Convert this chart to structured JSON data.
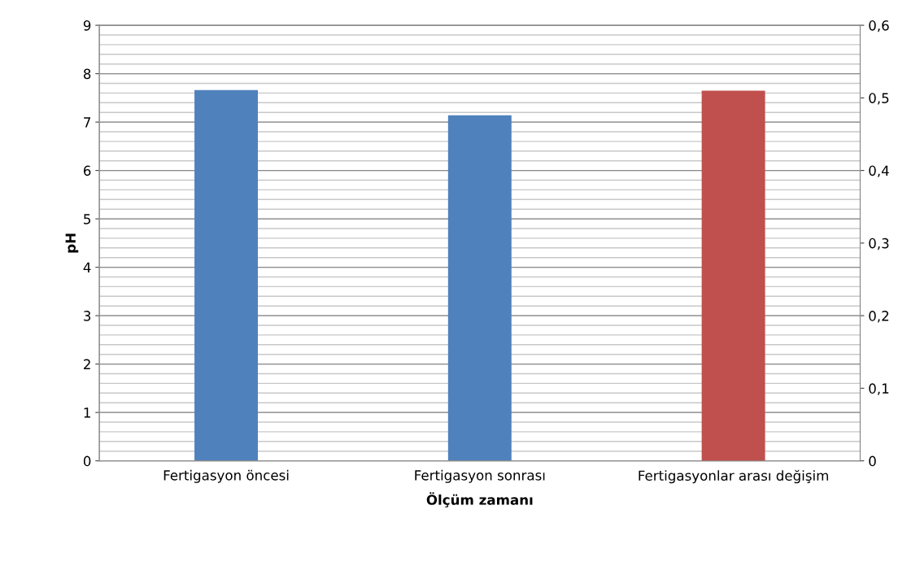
{
  "chart_data": {
    "type": "bar",
    "xlabel": "Ölçüm zamanı",
    "ylabel": "pH",
    "categories": [
      "Fertigasyon öncesi",
      "Fertigasyon sonrası",
      "Fertigasyonlar arası değişim"
    ],
    "series": [
      {
        "color": "#4f81bd",
        "values": [
          7.66,
          7.14,
          null
        ]
      },
      {
        "color": "#c0504d",
        "values": [
          null,
          null,
          0.51
        ],
        "axis": "y2"
      }
    ],
    "ylim": [
      0,
      9
    ],
    "yticks": [
      0,
      1,
      2,
      3,
      4,
      5,
      6,
      7,
      8,
      9
    ],
    "y2lim": [
      0,
      0.6
    ],
    "y2ticks": [
      0,
      {
        "value": 0.1,
        "label": "0,1"
      },
      {
        "value": 0.2,
        "label": "0,2"
      },
      {
        "value": 0.3,
        "label": "0,3"
      },
      {
        "value": 0.4,
        "label": "0,4"
      },
      {
        "value": 0.5,
        "label": "0,5"
      },
      {
        "value": 0.6,
        "label": "0,6"
      }
    ],
    "grid": "y",
    "legend": false
  }
}
